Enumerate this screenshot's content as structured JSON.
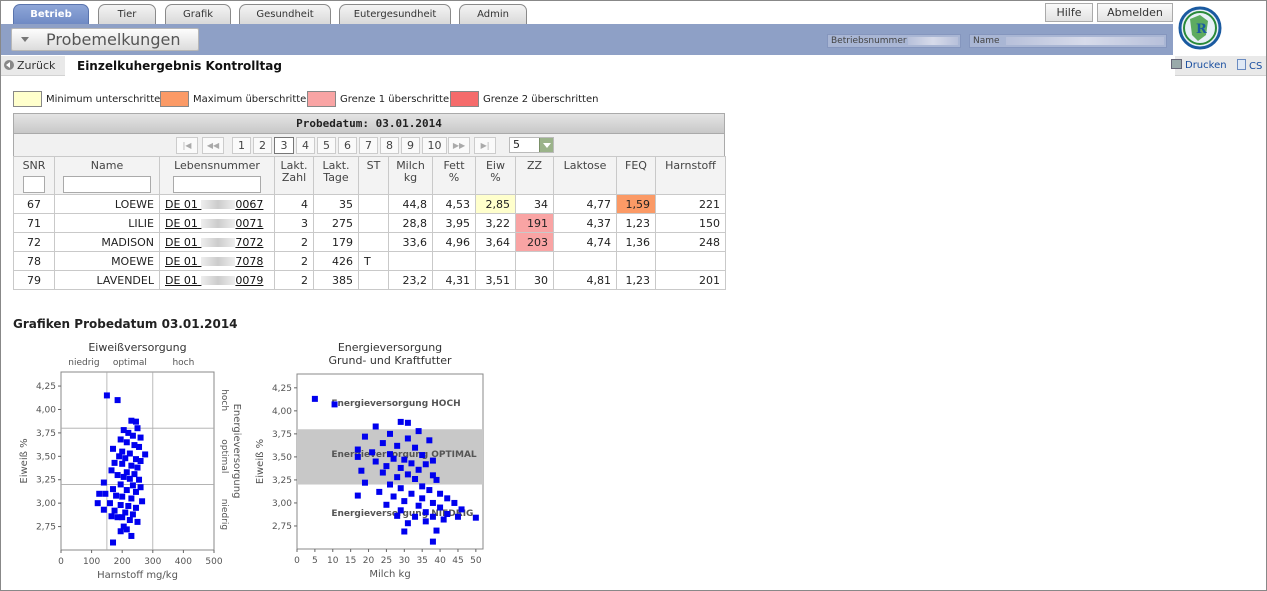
{
  "tabs": [
    {
      "label": "Betrieb",
      "active": true
    },
    {
      "label": "Tier",
      "active": false
    },
    {
      "label": "Grafik",
      "active": false
    },
    {
      "label": "Gesundheit",
      "active": false
    },
    {
      "label": "Eutergesundheit",
      "active": false
    },
    {
      "label": "Admin",
      "active": false
    }
  ],
  "top_buttons": {
    "help": "Hilfe",
    "logout": "Abmelden"
  },
  "header": {
    "module": "Probemelkungen",
    "betrieb_label": "Betriebsnummer",
    "name_label": "Name"
  },
  "nav": {
    "back": "Zurück",
    "title": "Einzelkuhergebnis Kontrolltag",
    "print": "Drucken",
    "csv": "CS"
  },
  "legend": [
    {
      "label": "Minimum unterschritten",
      "color": "#ffffcc"
    },
    {
      "label": "Maximum überschritten",
      "color": "#fb9a66"
    },
    {
      "label": "Grenze 1 überschritten",
      "color": "#f9a4a4"
    },
    {
      "label": "Grenze 2 überschritten",
      "color": "#f56b6b"
    }
  ],
  "table": {
    "title": "Probedatum: 03.01.2014",
    "pages": [
      "1",
      "2",
      "3",
      "4",
      "5",
      "6",
      "7",
      "8",
      "9",
      "10"
    ],
    "current_page": "3",
    "page_size": "5",
    "columns": {
      "snr": "SNR",
      "name": "Name",
      "leb": "Lebensnummer",
      "lakt_zahl_1": "Lakt.",
      "lakt_zahl_2": "Zahl",
      "lakt_tage_1": "Lakt.",
      "lakt_tage_2": "Tage",
      "st": "ST",
      "milch_1": "Milch",
      "milch_2": "kg",
      "fett_1": "Fett",
      "fett_2": "%",
      "eiw_1": "Eiw",
      "eiw_2": "%",
      "zz": "ZZ",
      "laktose": "Laktose",
      "feq": "FEQ",
      "harnstoff": "Harnstoff"
    },
    "rows": [
      {
        "snr": "67",
        "name": "LOEWE",
        "leb_prefix": "DE 01",
        "leb_suffix": "0067",
        "lakt_zahl": "4",
        "lakt_tage": "35",
        "st": "",
        "milch": "44,8",
        "fett": "4,53",
        "eiw": "2,85",
        "zz": "34",
        "laktose": "4,77",
        "feq": "1,59",
        "harnstoff": "221"
      },
      {
        "snr": "71",
        "name": "LILIE",
        "leb_prefix": "DE 01",
        "leb_suffix": "0071",
        "lakt_zahl": "3",
        "lakt_tage": "275",
        "st": "",
        "milch": "28,8",
        "fett": "3,95",
        "eiw": "3,22",
        "zz": "191",
        "laktose": "4,37",
        "feq": "1,23",
        "harnstoff": "150"
      },
      {
        "snr": "72",
        "name": "MADISON",
        "leb_prefix": "DE 01",
        "leb_suffix": "7072",
        "lakt_zahl": "2",
        "lakt_tage": "179",
        "st": "",
        "milch": "33,6",
        "fett": "4,96",
        "eiw": "3,64",
        "zz": "203",
        "laktose": "4,74",
        "feq": "1,36",
        "harnstoff": "248"
      },
      {
        "snr": "78",
        "name": "MOEWE",
        "leb_prefix": "DE 01",
        "leb_suffix": "7078",
        "lakt_zahl": "2",
        "lakt_tage": "426",
        "st": "T",
        "milch": "",
        "fett": "",
        "eiw": "",
        "zz": "",
        "laktose": "",
        "feq": "",
        "harnstoff": ""
      },
      {
        "snr": "79",
        "name": "LAVENDEL",
        "leb_prefix": "DE 01",
        "leb_suffix": "0079",
        "lakt_zahl": "2",
        "lakt_tage": "385",
        "st": "",
        "milch": "23,2",
        "fett": "4,31",
        "eiw": "3,51",
        "zz": "30",
        "laktose": "4,81",
        "feq": "1,23",
        "harnstoff": "201"
      }
    ],
    "highlights": {
      "0.eiw": "#ffffcc",
      "0.feq": "#fb9a66",
      "1.zz": "#f9a4a4",
      "2.zz": "#f9a4a4"
    }
  },
  "charts_title": "Grafiken Probedatum 03.01.2014",
  "chart_data": [
    {
      "type": "scatter",
      "title": "Eiweißversorgung",
      "top_labels": [
        "niedrig",
        "optimal",
        "hoch"
      ],
      "right_label": "Energieversorgung",
      "right_sublabels": [
        "hoch",
        "optimal",
        "niedrig"
      ],
      "xlabel": "Harnstoff mg/kg",
      "ylabel": "Eiweiß %",
      "xlim": [
        0,
        500
      ],
      "ylim": [
        2.5,
        4.4
      ],
      "xticks": [
        "0",
        "100",
        "200",
        "300",
        "400",
        "500"
      ],
      "yticks": [
        "2,75",
        "3,00",
        "3,25",
        "3,50",
        "3,75",
        "4,00",
        "4,25"
      ],
      "vlines": [
        150,
        300
      ],
      "hlines": [
        3.2,
        3.8
      ],
      "color": "#0000ee",
      "points": [
        [
          150,
          4.15
        ],
        [
          185,
          4.1
        ],
        [
          230,
          3.88
        ],
        [
          245,
          3.87
        ],
        [
          250,
          3.8
        ],
        [
          205,
          3.78
        ],
        [
          220,
          3.75
        ],
        [
          235,
          3.72
        ],
        [
          260,
          3.7
        ],
        [
          195,
          3.68
        ],
        [
          215,
          3.65
        ],
        [
          240,
          3.62
        ],
        [
          255,
          3.6
        ],
        [
          170,
          3.58
        ],
        [
          200,
          3.55
        ],
        [
          225,
          3.53
        ],
        [
          275,
          3.52
        ],
        [
          190,
          3.5
        ],
        [
          210,
          3.48
        ],
        [
          245,
          3.47
        ],
        [
          260,
          3.45
        ],
        [
          175,
          3.43
        ],
        [
          200,
          3.42
        ],
        [
          230,
          3.4
        ],
        [
          250,
          3.38
        ],
        [
          165,
          3.35
        ],
        [
          215,
          3.33
        ],
        [
          240,
          3.31
        ],
        [
          185,
          3.3
        ],
        [
          205,
          3.28
        ],
        [
          225,
          3.26
        ],
        [
          255,
          3.25
        ],
        [
          140,
          3.22
        ],
        [
          195,
          3.2
        ],
        [
          235,
          3.19
        ],
        [
          260,
          3.17
        ],
        [
          170,
          3.15
        ],
        [
          215,
          3.14
        ],
        [
          245,
          3.12
        ],
        [
          125,
          3.1
        ],
        [
          145,
          3.1
        ],
        [
          180,
          3.08
        ],
        [
          200,
          3.07
        ],
        [
          230,
          3.05
        ],
        [
          265,
          3.02
        ],
        [
          120,
          3.0
        ],
        [
          160,
          3.0
        ],
        [
          195,
          2.98
        ],
        [
          220,
          2.97
        ],
        [
          245,
          2.95
        ],
        [
          140,
          2.93
        ],
        [
          175,
          2.92
        ],
        [
          210,
          2.9
        ],
        [
          235,
          2.88
        ],
        [
          165,
          2.86
        ],
        [
          185,
          2.85
        ],
        [
          200,
          2.85
        ],
        [
          225,
          2.82
        ],
        [
          250,
          2.8
        ],
        [
          205,
          2.75
        ],
        [
          215,
          2.72
        ],
        [
          195,
          2.7
        ],
        [
          230,
          2.65
        ],
        [
          170,
          2.58
        ]
      ]
    },
    {
      "type": "scatter",
      "title": "Energieversorgung",
      "subtitle": "Grund- und Kraftfutter",
      "xlabel": "Milch kg",
      "ylabel": "Eiweiß %",
      "xlim": [
        0,
        52
      ],
      "ylim": [
        2.5,
        4.4
      ],
      "xticks": [
        "0",
        "5",
        "10",
        "15",
        "20",
        "25",
        "30",
        "35",
        "40",
        "45",
        "50"
      ],
      "yticks": [
        "2,75",
        "3,00",
        "3,25",
        "3,50",
        "3,75",
        "4,00",
        "4,25"
      ],
      "band": [
        3.2,
        3.8
      ],
      "annotations": [
        "Energieversorgung HOCH",
        "Energieversorgung OPTIMAL",
        "Energieversorgung NIEDRIG"
      ],
      "color": "#0000ee",
      "points": [
        [
          5,
          4.13
        ],
        [
          10.5,
          4.07
        ],
        [
          29,
          3.88
        ],
        [
          31,
          3.87
        ],
        [
          22,
          3.83
        ],
        [
          34,
          3.78
        ],
        [
          26,
          3.75
        ],
        [
          19,
          3.72
        ],
        [
          31,
          3.7
        ],
        [
          37,
          3.68
        ],
        [
          24,
          3.65
        ],
        [
          28,
          3.62
        ],
        [
          33,
          3.6
        ],
        [
          17,
          3.58
        ],
        [
          21,
          3.55
        ],
        [
          26,
          3.53
        ],
        [
          35,
          3.52
        ],
        [
          17,
          3.5
        ],
        [
          27,
          3.48
        ],
        [
          30,
          3.47
        ],
        [
          38,
          3.46
        ],
        [
          22,
          3.45
        ],
        [
          32,
          3.43
        ],
        [
          36,
          3.42
        ],
        [
          25,
          3.4
        ],
        [
          29,
          3.38
        ],
        [
          34,
          3.36
        ],
        [
          18,
          3.35
        ],
        [
          24,
          3.33
        ],
        [
          31,
          3.31
        ],
        [
          38,
          3.3
        ],
        [
          28,
          3.28
        ],
        [
          33,
          3.26
        ],
        [
          39,
          3.25
        ],
        [
          19,
          3.22
        ],
        [
          26,
          3.2
        ],
        [
          35,
          3.18
        ],
        [
          29,
          3.16
        ],
        [
          37,
          3.14
        ],
        [
          23,
          3.12
        ],
        [
          32,
          3.1
        ],
        [
          40,
          3.1
        ],
        [
          17,
          3.08
        ],
        [
          27,
          3.07
        ],
        [
          35,
          3.05
        ],
        [
          42,
          3.05
        ],
        [
          30,
          3.02
        ],
        [
          38,
          3.0
        ],
        [
          44,
          3.0
        ],
        [
          25,
          2.98
        ],
        [
          34,
          2.97
        ],
        [
          40,
          2.95
        ],
        [
          46,
          2.93
        ],
        [
          29,
          2.92
        ],
        [
          36,
          2.9
        ],
        [
          42,
          2.88
        ],
        [
          28,
          2.86
        ],
        [
          33,
          2.85
        ],
        [
          38,
          2.85
        ],
        [
          45,
          2.85
        ],
        [
          50,
          2.84
        ],
        [
          41,
          2.82
        ],
        [
          36,
          2.8
        ],
        [
          31,
          2.78
        ],
        [
          39,
          2.7
        ],
        [
          30,
          2.69
        ],
        [
          38,
          2.58
        ]
      ]
    }
  ]
}
